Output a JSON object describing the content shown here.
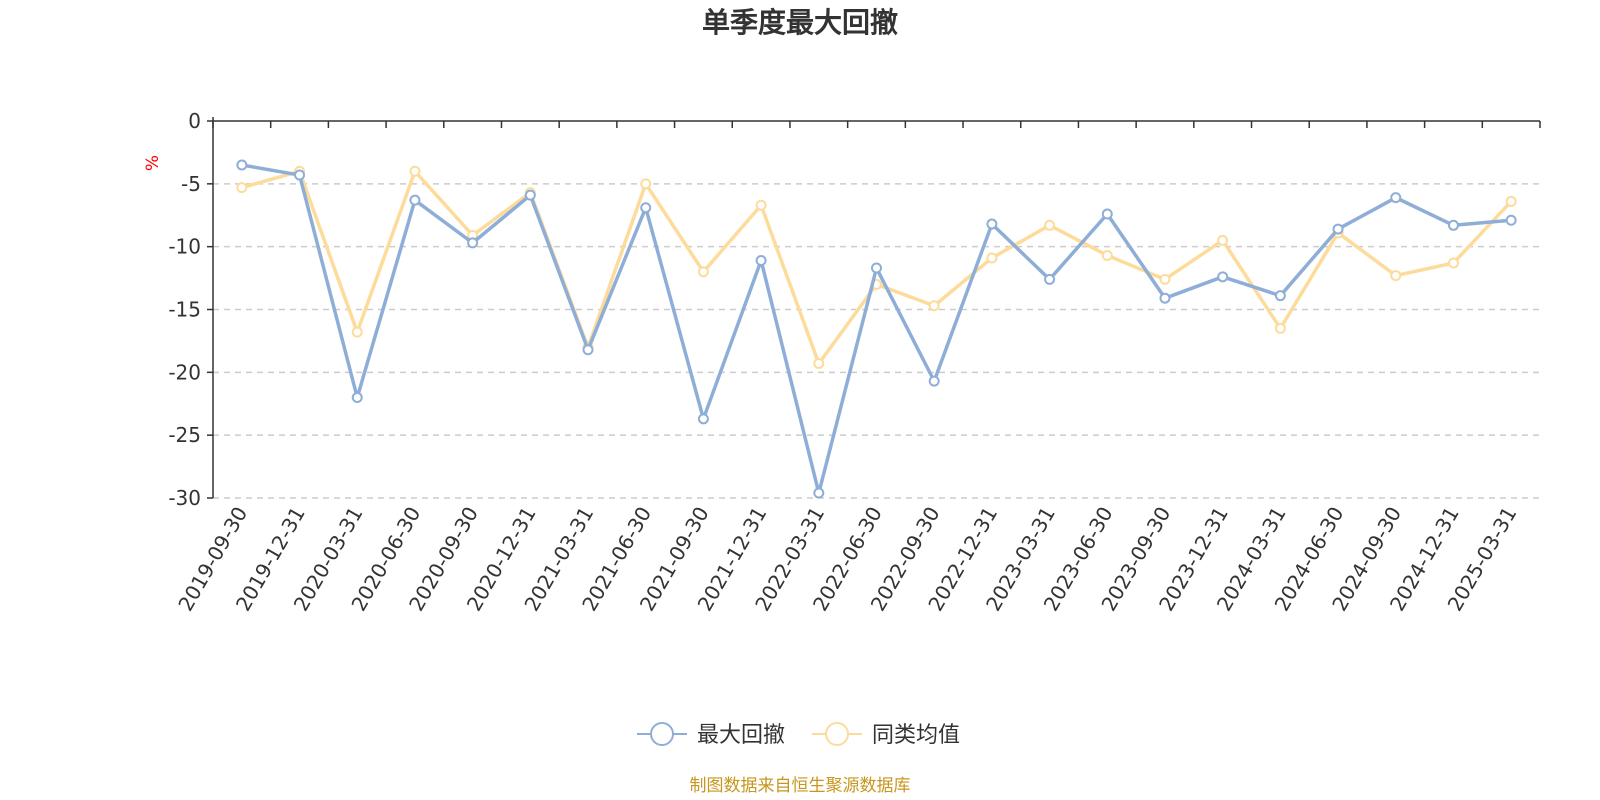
{
  "chart_data": {
    "type": "line",
    "title": "单季度最大回撤",
    "ylabel": "%",
    "ylim": [
      -30,
      0
    ],
    "yticks": [
      0,
      -5,
      -10,
      -15,
      -20,
      -25,
      -30
    ],
    "grid": true,
    "legend_position": "bottom-center",
    "categories": [
      "2019-09-30",
      "2019-12-31",
      "2020-03-31",
      "2020-06-30",
      "2020-09-30",
      "2020-12-31",
      "2021-03-31",
      "2021-06-30",
      "2021-09-30",
      "2021-12-31",
      "2022-03-31",
      "2022-06-30",
      "2022-09-30",
      "2022-12-31",
      "2023-03-31",
      "2023-06-30",
      "2023-09-30",
      "2023-12-31",
      "2024-03-31",
      "2024-06-30",
      "2024-09-30",
      "2024-12-31",
      "2025-03-31"
    ],
    "series": [
      {
        "name": "最大回撤",
        "color": "#8eaed8",
        "values": [
          -3.5,
          -4.3,
          -22.0,
          -6.3,
          -9.7,
          -5.9,
          -18.2,
          -6.9,
          -23.7,
          -11.1,
          -29.6,
          -11.7,
          -20.7,
          -8.2,
          -12.6,
          -7.4,
          -14.1,
          -12.4,
          -13.9,
          -8.6,
          -6.1,
          -8.3,
          -7.9
        ]
      },
      {
        "name": "同类均值",
        "color": "#fddb9b",
        "values": [
          -5.3,
          -4.0,
          -16.8,
          -4.0,
          -9.1,
          -5.7,
          -18.0,
          -5.0,
          -12.0,
          -6.7,
          -19.3,
          -13.0,
          -14.7,
          -10.9,
          -8.3,
          -10.7,
          -12.6,
          -9.5,
          -16.5,
          -8.9,
          -12.3,
          -11.3,
          -6.4
        ]
      }
    ],
    "source_note": "制图数据来自恒生聚源数据库"
  }
}
